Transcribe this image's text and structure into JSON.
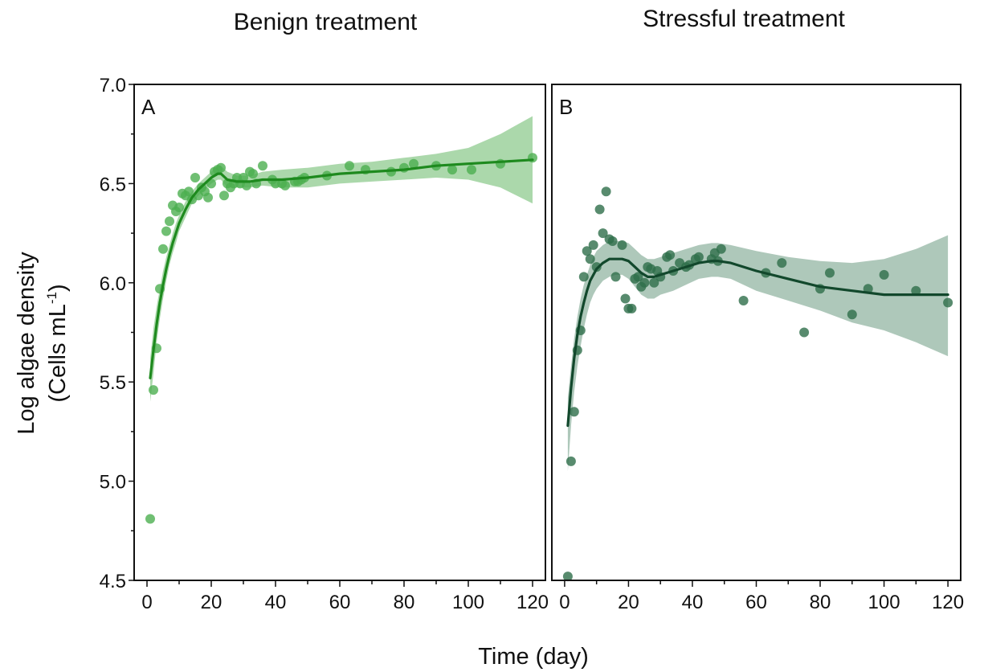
{
  "chart_data": {
    "type": "scatter",
    "ylabel_line1": "Log algae density",
    "ylabel_line2_prefix": "(Cells mL",
    "ylabel_superscript": "-1",
    "ylabel_line2_suffix": ")",
    "xlabel": "Time (day)",
    "ylim": [
      4.5,
      7.0
    ],
    "xlim": [
      -4,
      124
    ],
    "yticks": [
      "7.0",
      "6.5",
      "6.0",
      "5.5",
      "5.0",
      "4.5"
    ],
    "xticks": [
      "0",
      "20",
      "40",
      "60",
      "80",
      "100",
      "120"
    ],
    "panels": [
      {
        "title": "Benign treatment",
        "letter": "A",
        "color": "#4caf50",
        "line_color": "#1e8a1e",
        "band_color": "#8bc98a",
        "points": [
          [
            1,
            4.81
          ],
          [
            2,
            5.46
          ],
          [
            3,
            5.67
          ],
          [
            4,
            5.97
          ],
          [
            5,
            6.17
          ],
          [
            6,
            6.26
          ],
          [
            7,
            6.31
          ],
          [
            8,
            6.39
          ],
          [
            9,
            6.36
          ],
          [
            10,
            6.38
          ],
          [
            11,
            6.45
          ],
          [
            12,
            6.44
          ],
          [
            13,
            6.46
          ],
          [
            14,
            6.42
          ],
          [
            15,
            6.53
          ],
          [
            16,
            6.44
          ],
          [
            17,
            6.48
          ],
          [
            18,
            6.46
          ],
          [
            19,
            6.43
          ],
          [
            20,
            6.5
          ],
          [
            21,
            6.56
          ],
          [
            22,
            6.57
          ],
          [
            23,
            6.58
          ],
          [
            24,
            6.44
          ],
          [
            25,
            6.5
          ],
          [
            26,
            6.48
          ],
          [
            27,
            6.5
          ],
          [
            28,
            6.53
          ],
          [
            29,
            6.5
          ],
          [
            30,
            6.53
          ],
          [
            31,
            6.49
          ],
          [
            32,
            6.56
          ],
          [
            33,
            6.55
          ],
          [
            34,
            6.5
          ],
          [
            36,
            6.59
          ],
          [
            39,
            6.52
          ],
          [
            40,
            6.5
          ],
          [
            42,
            6.5
          ],
          [
            43,
            6.49
          ],
          [
            46,
            6.51
          ],
          [
            47,
            6.51
          ],
          [
            48,
            6.52
          ],
          [
            49,
            6.53
          ],
          [
            56,
            6.54
          ],
          [
            63,
            6.59
          ],
          [
            68,
            6.57
          ],
          [
            76,
            6.56
          ],
          [
            80,
            6.58
          ],
          [
            83,
            6.6
          ],
          [
            90,
            6.59
          ],
          [
            95,
            6.57
          ],
          [
            101,
            6.57
          ],
          [
            110,
            6.6
          ],
          [
            120,
            6.63
          ]
        ],
        "fit": [
          [
            1,
            5.52
          ],
          [
            2,
            5.66
          ],
          [
            3,
            5.79
          ],
          [
            4,
            5.9
          ],
          [
            5,
            5.99
          ],
          [
            6,
            6.07
          ],
          [
            7,
            6.14
          ],
          [
            8,
            6.2
          ],
          [
            9,
            6.25
          ],
          [
            10,
            6.3
          ],
          [
            12,
            6.37
          ],
          [
            14,
            6.43
          ],
          [
            16,
            6.47
          ],
          [
            18,
            6.5
          ],
          [
            20,
            6.53
          ],
          [
            22,
            6.55
          ],
          [
            23,
            6.55
          ],
          [
            25,
            6.52
          ],
          [
            28,
            6.51
          ],
          [
            32,
            6.51
          ],
          [
            36,
            6.52
          ],
          [
            42,
            6.52
          ],
          [
            50,
            6.53
          ],
          [
            60,
            6.55
          ],
          [
            70,
            6.56
          ],
          [
            80,
            6.57
          ],
          [
            90,
            6.59
          ],
          [
            100,
            6.6
          ],
          [
            110,
            6.61
          ],
          [
            120,
            6.62
          ]
        ],
        "band": [
          [
            1,
            5.4,
            5.62
          ],
          [
            2,
            5.54,
            5.77
          ],
          [
            3,
            5.7,
            5.88
          ],
          [
            4,
            5.82,
            5.97
          ],
          [
            5,
            5.92,
            6.06
          ],
          [
            6,
            6.01,
            6.13
          ],
          [
            7,
            6.09,
            6.19
          ],
          [
            8,
            6.15,
            6.25
          ],
          [
            9,
            6.2,
            6.3
          ],
          [
            10,
            6.26,
            6.34
          ],
          [
            12,
            6.33,
            6.41
          ],
          [
            14,
            6.4,
            6.46
          ],
          [
            16,
            6.44,
            6.5
          ],
          [
            18,
            6.47,
            6.53
          ],
          [
            20,
            6.5,
            6.56
          ],
          [
            22,
            6.52,
            6.59
          ],
          [
            23,
            6.52,
            6.59
          ],
          [
            25,
            6.48,
            6.56
          ],
          [
            28,
            6.48,
            6.54
          ],
          [
            32,
            6.48,
            6.54
          ],
          [
            36,
            6.49,
            6.56
          ],
          [
            42,
            6.48,
            6.57
          ],
          [
            50,
            6.48,
            6.58
          ],
          [
            60,
            6.5,
            6.6
          ],
          [
            70,
            6.51,
            6.61
          ],
          [
            80,
            6.52,
            6.63
          ],
          [
            90,
            6.53,
            6.65
          ],
          [
            100,
            6.52,
            6.68
          ],
          [
            110,
            6.48,
            6.75
          ],
          [
            120,
            6.4,
            6.84
          ]
        ]
      },
      {
        "title": "Stressful treatment",
        "letter": "B",
        "color": "#2e6e4a",
        "line_color": "#12482c",
        "band_color": "#8fb3a0",
        "points": [
          [
            1,
            4.52
          ],
          [
            2,
            5.1
          ],
          [
            3,
            5.35
          ],
          [
            4,
            5.66
          ],
          [
            5,
            5.76
          ],
          [
            6,
            6.03
          ],
          [
            7,
            6.16
          ],
          [
            8,
            6.12
          ],
          [
            9,
            6.19
          ],
          [
            10,
            6.08
          ],
          [
            11,
            6.37
          ],
          [
            12,
            6.25
          ],
          [
            13,
            6.46
          ],
          [
            14,
            6.22
          ],
          [
            15,
            6.21
          ],
          [
            16,
            6.03
          ],
          [
            18,
            6.19
          ],
          [
            19,
            5.92
          ],
          [
            20,
            5.87
          ],
          [
            21,
            5.87
          ],
          [
            22,
            6.02
          ],
          [
            23,
            6.03
          ],
          [
            24,
            5.98
          ],
          [
            25,
            6.0
          ],
          [
            26,
            6.08
          ],
          [
            27,
            6.07
          ],
          [
            28,
            6.0
          ],
          [
            29,
            6.06
          ],
          [
            30,
            6.03
          ],
          [
            32,
            6.13
          ],
          [
            33,
            6.14
          ],
          [
            34,
            6.06
          ],
          [
            36,
            6.1
          ],
          [
            38,
            6.08
          ],
          [
            39,
            6.09
          ],
          [
            41,
            6.12
          ],
          [
            42,
            6.13
          ],
          [
            46,
            6.12
          ],
          [
            47,
            6.15
          ],
          [
            48,
            6.11
          ],
          [
            49,
            6.17
          ],
          [
            56,
            5.91
          ],
          [
            63,
            6.05
          ],
          [
            68,
            6.1
          ],
          [
            75,
            5.75
          ],
          [
            80,
            5.97
          ],
          [
            83,
            6.05
          ],
          [
            90,
            5.84
          ],
          [
            95,
            5.97
          ],
          [
            100,
            6.04
          ],
          [
            110,
            5.96
          ],
          [
            120,
            5.9
          ]
        ],
        "fit": [
          [
            1,
            5.28
          ],
          [
            2,
            5.47
          ],
          [
            3,
            5.62
          ],
          [
            4,
            5.74
          ],
          [
            5,
            5.83
          ],
          [
            6,
            5.9
          ],
          [
            7,
            5.96
          ],
          [
            8,
            6.01
          ],
          [
            9,
            6.04
          ],
          [
            10,
            6.07
          ],
          [
            12,
            6.1
          ],
          [
            14,
            6.12
          ],
          [
            16,
            6.12
          ],
          [
            18,
            6.12
          ],
          [
            20,
            6.11
          ],
          [
            22,
            6.08
          ],
          [
            24,
            6.05
          ],
          [
            26,
            6.03
          ],
          [
            28,
            6.03
          ],
          [
            30,
            6.04
          ],
          [
            34,
            6.06
          ],
          [
            38,
            6.08
          ],
          [
            42,
            6.1
          ],
          [
            46,
            6.11
          ],
          [
            48,
            6.11
          ],
          [
            52,
            6.1
          ],
          [
            60,
            6.06
          ],
          [
            70,
            6.02
          ],
          [
            80,
            5.98
          ],
          [
            90,
            5.96
          ],
          [
            100,
            5.94
          ],
          [
            110,
            5.94
          ],
          [
            120,
            5.94
          ]
        ],
        "band": [
          [
            1,
            5.05,
            5.42
          ],
          [
            2,
            5.28,
            5.58
          ],
          [
            3,
            5.45,
            5.72
          ],
          [
            4,
            5.58,
            5.83
          ],
          [
            5,
            5.68,
            5.92
          ],
          [
            6,
            5.77,
            5.99
          ],
          [
            7,
            5.84,
            6.04
          ],
          [
            8,
            5.9,
            6.09
          ],
          [
            9,
            5.94,
            6.13
          ],
          [
            10,
            5.97,
            6.16
          ],
          [
            12,
            6.01,
            6.19
          ],
          [
            14,
            6.03,
            6.21
          ],
          [
            16,
            6.04,
            6.21
          ],
          [
            18,
            6.04,
            6.21
          ],
          [
            20,
            6.02,
            6.2
          ],
          [
            22,
            5.98,
            6.17
          ],
          [
            24,
            5.94,
            6.14
          ],
          [
            26,
            5.92,
            6.12
          ],
          [
            28,
            5.92,
            6.12
          ],
          [
            30,
            5.94,
            6.13
          ],
          [
            34,
            5.96,
            6.15
          ],
          [
            38,
            5.99,
            6.17
          ],
          [
            42,
            6.02,
            6.19
          ],
          [
            46,
            6.03,
            6.2
          ],
          [
            48,
            6.03,
            6.2
          ],
          [
            52,
            6.02,
            6.19
          ],
          [
            60,
            5.96,
            6.16
          ],
          [
            70,
            5.91,
            6.13
          ],
          [
            80,
            5.86,
            6.11
          ],
          [
            90,
            5.8,
            6.1
          ],
          [
            100,
            5.76,
            6.12
          ],
          [
            110,
            5.7,
            6.17
          ],
          [
            120,
            5.63,
            6.24
          ]
        ]
      }
    ]
  }
}
